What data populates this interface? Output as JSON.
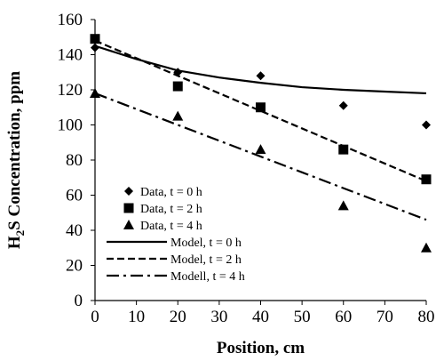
{
  "chart_data": {
    "type": "scatter",
    "xlabel": "Position, cm",
    "ylabel_main": "H",
    "ylabel_sub": "2",
    "ylabel_rest": "S Concentration, ppm",
    "xlim": [
      0,
      80
    ],
    "ylim": [
      0,
      160
    ],
    "xticks": [
      "0",
      "10",
      "20",
      "30",
      "40",
      "50",
      "60",
      "70",
      "80"
    ],
    "yticks": [
      "0",
      "20",
      "40",
      "60",
      "80",
      "100",
      "120",
      "140",
      "160"
    ],
    "grid": false,
    "legend_position": "bottom-left",
    "data_series": [
      {
        "name": "Data,  t = 0 h",
        "marker": "diamond",
        "x": [
          0,
          20,
          40,
          60,
          80
        ],
        "y": [
          144,
          130,
          128,
          111,
          100
        ]
      },
      {
        "name": "Data,  t = 2 h",
        "marker": "square",
        "x": [
          0,
          20,
          40,
          60,
          80
        ],
        "y": [
          149,
          122,
          110,
          86,
          69
        ]
      },
      {
        "name": "Data, t = 4 h",
        "marker": "triangle",
        "x": [
          0,
          20,
          40,
          60,
          80
        ],
        "y": [
          118,
          105,
          86,
          54,
          30
        ]
      }
    ],
    "model_series": [
      {
        "name": "Model, t = 0 h",
        "dash": "solid",
        "x": [
          0,
          10,
          20,
          30,
          40,
          50,
          60,
          70,
          80
        ],
        "y": [
          145,
          137.5,
          131,
          127,
          124,
          121.5,
          120,
          119,
          118
        ]
      },
      {
        "name": "Model, t = 2 h",
        "dash": "dashed",
        "x": [
          0,
          10,
          20,
          30,
          40,
          50,
          60,
          70,
          80
        ],
        "y": [
          148,
          138,
          128,
          118,
          108,
          98,
          88,
          78,
          68
        ]
      },
      {
        "name": "Modell, t = 4 h",
        "dash": "dashdot",
        "x": [
          0,
          10,
          20,
          30,
          40,
          50,
          60,
          70,
          80
        ],
        "y": [
          118,
          109,
          100,
          91,
          82,
          73,
          64,
          55,
          46
        ]
      }
    ]
  }
}
